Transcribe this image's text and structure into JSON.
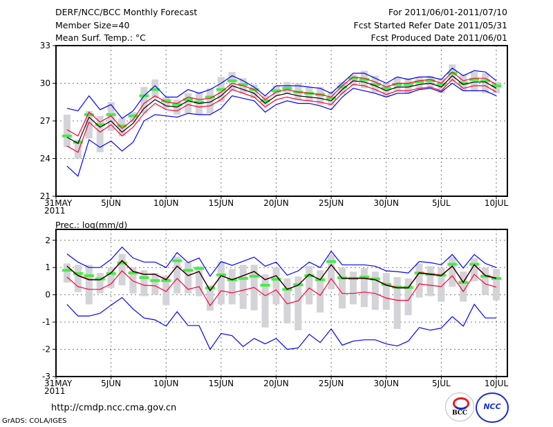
{
  "header": {
    "title": "DERF/NCC/BCC Monthly Forecast",
    "member_size": "Member Size=40",
    "variable": "Mean Surf. Temp.: °C",
    "period": "For 2011/06/01-2011/07/10",
    "started": "Fcst Started Refer Date 2011/05/31",
    "produced": "Fcst Produced Date 2011/06/01"
  },
  "footer": {
    "url": "http://cmdp.ncc.cma.gov.cn",
    "grads": "GrADS: COLA/IGES",
    "logo_bcc": "BCC",
    "logo_ncc": "NCC"
  },
  "colors": {
    "envelope": "#0000ff",
    "spread": "#ff0033",
    "mean": "#000000",
    "marker": "#44ee44",
    "box": "#d3d3d8",
    "grid": "#777777"
  },
  "chart_data": [
    {
      "type": "line",
      "title": "Mean Surf. Temp.: °C",
      "ylim": [
        21,
        33
      ],
      "yticks": [
        21,
        24,
        27,
        30,
        33
      ],
      "xticks": [
        0,
        5,
        10,
        15,
        20,
        25,
        30,
        35,
        40
      ],
      "xticklabels": [
        "31MAY",
        "5JUN",
        "10JUN",
        "15JUN",
        "20JUN",
        "25JUN",
        "30JUN",
        "5JUL",
        "10JUL"
      ],
      "xyear": "2011",
      "grid": true,
      "days": [
        1,
        2,
        3,
        4,
        5,
        6,
        7,
        8,
        9,
        10,
        11,
        12,
        13,
        14,
        15,
        16,
        17,
        18,
        19,
        20,
        21,
        22,
        23,
        24,
        25,
        26,
        27,
        28,
        29,
        30,
        31,
        32,
        33,
        34,
        35,
        36,
        37,
        38,
        39,
        40
      ],
      "series": [
        {
          "name": "max",
          "values": [
            28.0,
            27.8,
            29.0,
            27.9,
            28.3,
            27.2,
            27.8,
            29.0,
            29.8,
            28.9,
            28.9,
            29.5,
            29.2,
            29.5,
            30.0,
            30.6,
            30.2,
            29.7,
            29.0,
            29.8,
            29.8,
            29.8,
            29.7,
            29.6,
            29.2,
            30.0,
            30.8,
            30.8,
            30.4,
            30.0,
            30.5,
            30.3,
            30.5,
            30.5,
            30.3,
            31.2,
            30.6,
            31.0,
            30.9,
            30.2
          ]
        },
        {
          "name": "min",
          "values": [
            23.4,
            22.6,
            25.5,
            24.9,
            25.4,
            24.6,
            25.3,
            27.0,
            27.5,
            27.4,
            27.3,
            27.6,
            27.5,
            27.5,
            28.0,
            29.0,
            28.8,
            28.6,
            27.7,
            28.3,
            28.6,
            28.4,
            28.4,
            28.2,
            27.9,
            28.9,
            29.6,
            29.4,
            29.2,
            28.9,
            29.2,
            29.2,
            29.5,
            29.6,
            29.3,
            30.0,
            29.4,
            29.4,
            29.4,
            29.0
          ]
        },
        {
          "name": "upper",
          "values": [
            26.3,
            25.8,
            27.7,
            26.9,
            27.4,
            26.4,
            27.1,
            28.4,
            29.0,
            28.5,
            28.4,
            28.9,
            28.7,
            28.8,
            29.3,
            30.0,
            29.8,
            29.5,
            28.7,
            29.3,
            29.5,
            29.3,
            29.2,
            29.1,
            28.9,
            29.8,
            30.5,
            30.4,
            30.1,
            29.7,
            30.0,
            30.0,
            30.2,
            30.3,
            30.0,
            30.9,
            30.2,
            30.4,
            30.4,
            29.9
          ]
        },
        {
          "name": "lower",
          "values": [
            25.0,
            24.5,
            26.9,
            26.1,
            26.7,
            25.8,
            26.5,
            27.6,
            28.4,
            27.9,
            27.8,
            28.3,
            28.1,
            28.2,
            28.7,
            29.5,
            29.2,
            28.9,
            28.1,
            28.7,
            28.9,
            28.7,
            28.6,
            28.5,
            28.3,
            29.2,
            29.9,
            29.8,
            29.5,
            29.1,
            29.4,
            29.4,
            29.6,
            29.7,
            29.4,
            30.3,
            29.6,
            29.8,
            29.8,
            29.3
          ]
        },
        {
          "name": "mean",
          "values": [
            25.7,
            25.2,
            27.3,
            26.5,
            27.0,
            26.1,
            26.8,
            28.0,
            28.7,
            28.2,
            28.1,
            28.6,
            28.4,
            28.5,
            29.0,
            29.8,
            29.5,
            29.2,
            28.4,
            29.0,
            29.2,
            29.0,
            28.9,
            28.8,
            28.6,
            29.5,
            30.2,
            30.1,
            29.8,
            29.4,
            29.7,
            29.7,
            29.9,
            30.0,
            29.7,
            30.6,
            29.9,
            30.1,
            30.1,
            29.6
          ]
        }
      ],
      "markers": [
        25.8,
        25.3,
        27.5,
        26.7,
        27.5,
        26.6,
        27.4,
        29.0,
        29.5,
        28.6,
        28.3,
        28.7,
        28.5,
        28.9,
        29.5,
        30.2,
        29.9,
        29.5,
        28.6,
        29.4,
        29.6,
        29.3,
        29.2,
        29.1,
        28.8,
        29.7,
        30.4,
        30.3,
        29.9,
        29.6,
        29.9,
        29.9,
        30.1,
        30.2,
        29.9,
        30.8,
        30.0,
        30.3,
        30.2,
        29.8
      ],
      "box_low": [
        24.9,
        24.0,
        25.6,
        24.5,
        26.2,
        25.8,
        26.9,
        27.6,
        28.8,
        28.0,
        27.5,
        27.6,
        27.5,
        27.6,
        28.5,
        29.4,
        29.2,
        28.8,
        28.2,
        29.0,
        29.2,
        28.7,
        28.6,
        28.3,
        28.2,
        29.1,
        29.8,
        29.6,
        29.3,
        28.9,
        29.4,
        29.2,
        29.5,
        29.6,
        29.2,
        30.1,
        29.4,
        29.4,
        29.2,
        29.2
      ],
      "box_high": [
        27.5,
        25.5,
        27.8,
        27.4,
        28.5,
        27.2,
        27.7,
        29.7,
        30.3,
        28.9,
        28.7,
        29.2,
        29.3,
        29.6,
        30.5,
        30.9,
        30.4,
        29.9,
        29.0,
        29.8,
        30.1,
        30.0,
        29.7,
        29.7,
        29.3,
        30.1,
        30.7,
        31.0,
        30.6,
        30.0,
        30.5,
        30.4,
        30.5,
        30.6,
        30.4,
        31.5,
        30.7,
        30.9,
        30.8,
        30.1
      ]
    },
    {
      "type": "line",
      "title": "Prec.: log(mm/d)",
      "ylim": [
        -3,
        2.4
      ],
      "yticks": [
        -3,
        -2,
        -1,
        0,
        1,
        2
      ],
      "xticks": [
        0,
        5,
        10,
        15,
        20,
        25,
        30,
        35,
        40
      ],
      "xticklabels": [
        "31MAY",
        "5JUN",
        "10JUN",
        "15JUN",
        "20JUN",
        "25JUN",
        "30JUN",
        "5JUL",
        "10JUL"
      ],
      "xyear": "2011",
      "grid": true,
      "days": [
        1,
        2,
        3,
        4,
        5,
        6,
        7,
        8,
        9,
        10,
        11,
        12,
        13,
        14,
        15,
        16,
        17,
        18,
        19,
        20,
        21,
        22,
        23,
        24,
        25,
        26,
        27,
        28,
        29,
        30,
        31,
        32,
        33,
        34,
        35,
        36,
        37,
        38,
        39,
        40
      ],
      "series": [
        {
          "name": "max",
          "values": [
            1.5,
            1.2,
            1.0,
            1.0,
            1.3,
            1.75,
            1.35,
            1.2,
            1.2,
            1.0,
            1.55,
            1.18,
            1.35,
            0.68,
            1.22,
            1.08,
            1.23,
            1.38,
            1.05,
            1.2,
            0.72,
            0.88,
            1.2,
            1.0,
            1.6,
            1.1,
            1.1,
            1.1,
            1.05,
            0.88,
            0.85,
            0.8,
            1.22,
            1.18,
            1.1,
            1.48,
            0.98,
            1.48,
            1.15,
            1.0
          ]
        },
        {
          "name": "min",
          "values": [
            -0.35,
            -0.78,
            -0.78,
            -0.68,
            -0.38,
            -0.1,
            -0.52,
            -0.85,
            -0.92,
            -1.15,
            -0.62,
            -1.13,
            -1.13,
            -2.0,
            -1.42,
            -1.5,
            -1.9,
            -1.6,
            -1.8,
            -1.6,
            -2.0,
            -1.95,
            -1.45,
            -1.75,
            -1.25,
            -1.85,
            -1.7,
            -1.65,
            -1.65,
            -1.8,
            -1.88,
            -1.7,
            -1.2,
            -1.3,
            -1.22,
            -0.8,
            -1.15,
            -0.35,
            -0.85,
            -0.85
          ]
        },
        {
          "name": "upper",
          "values": [
            1.06,
            0.72,
            0.57,
            0.56,
            0.81,
            1.27,
            0.87,
            0.76,
            0.76,
            0.57,
            1.06,
            0.71,
            0.86,
            0.17,
            0.71,
            0.56,
            0.71,
            0.86,
            0.56,
            0.71,
            0.21,
            0.36,
            0.76,
            0.56,
            1.11,
            0.61,
            0.61,
            0.62,
            0.56,
            0.37,
            0.27,
            0.27,
            0.82,
            0.77,
            0.72,
            1.06,
            0.47,
            1.11,
            0.72,
            0.62
          ]
        },
        {
          "name": "lower",
          "values": [
            0.65,
            0.3,
            0.2,
            0.2,
            0.4,
            0.88,
            0.5,
            0.35,
            0.33,
            0.12,
            0.6,
            0.2,
            0.3,
            -0.4,
            0.15,
            0.07,
            0.17,
            0.27,
            -0.03,
            0.18,
            -0.33,
            -0.22,
            0.25,
            -0.02,
            0.6,
            0.05,
            0.05,
            0.1,
            0.05,
            -0.12,
            -0.2,
            -0.2,
            0.4,
            0.35,
            0.3,
            0.7,
            0.12,
            0.75,
            0.4,
            0.28
          ]
        },
        {
          "name": "mean",
          "values": [
            1.05,
            0.7,
            0.55,
            0.55,
            0.8,
            1.25,
            0.85,
            0.75,
            0.75,
            0.55,
            1.05,
            0.7,
            0.85,
            0.15,
            0.7,
            0.55,
            0.7,
            0.85,
            0.55,
            0.7,
            0.2,
            0.35,
            0.75,
            0.55,
            1.1,
            0.6,
            0.6,
            0.6,
            0.55,
            0.35,
            0.25,
            0.25,
            0.8,
            0.75,
            0.7,
            1.05,
            0.45,
            1.1,
            0.7,
            0.6
          ]
        }
      ],
      "markers": [
        0.9,
        0.78,
        0.7,
        0.58,
        0.78,
        1.17,
        0.8,
        0.63,
        0.52,
        0.52,
        1.25,
        0.9,
        0.97,
        0.25,
        0.73,
        0.55,
        0.6,
        0.68,
        0.35,
        0.57,
        0.2,
        0.37,
        0.7,
        0.55,
        1.22,
        0.62,
        0.6,
        0.65,
        0.58,
        0.38,
        0.28,
        0.27,
        0.8,
        0.75,
        0.72,
        1.12,
        0.45,
        1.12,
        0.68,
        0.6
      ],
      "box_low": [
        0.45,
        0.1,
        -0.35,
        0.05,
        0.25,
        0.35,
        0.05,
        -0.05,
        0.0,
        -0.38,
        0.05,
        0.05,
        -0.05,
        -0.58,
        -0.35,
        -0.35,
        -0.52,
        -0.57,
        -1.2,
        -0.35,
        -1.05,
        -1.3,
        -0.35,
        -0.65,
        0.2,
        -0.5,
        -0.35,
        -0.45,
        -0.55,
        -0.55,
        -1.25,
        -0.75,
        -0.1,
        -0.05,
        -0.25,
        0.3,
        -0.25,
        0.5,
        0.0,
        -0.2
      ],
      "box_high": [
        1.15,
        1.1,
        1.1,
        0.8,
        1.0,
        1.5,
        1.0,
        0.9,
        0.8,
        0.7,
        1.4,
        1.2,
        1.05,
        0.35,
        1.2,
        0.95,
        1.1,
        1.1,
        0.75,
        1.0,
        0.6,
        0.67,
        1.05,
        0.9,
        1.45,
        1.0,
        0.85,
        0.98,
        0.85,
        0.8,
        0.65,
        0.6,
        1.15,
        1.05,
        1.0,
        1.4,
        0.85,
        1.35,
        1.0,
        0.95
      ]
    }
  ]
}
